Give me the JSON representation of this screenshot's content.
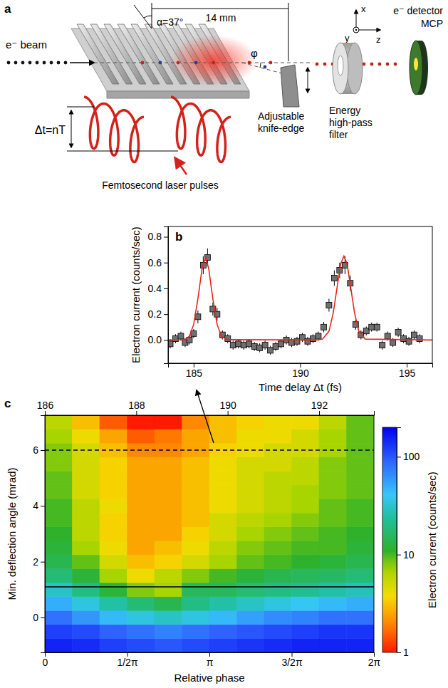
{
  "diagram": {
    "panel_label": "a",
    "distance": "14 mm",
    "angle": "α=37°",
    "beam": "e⁻ beam",
    "delay": "Δt=nT",
    "laser": "Femtosecond laser pulses",
    "deflection": "φ",
    "knife_edge": "Adjustable knife-edge",
    "axes": [
      "x",
      "y",
      "z"
    ],
    "detector": [
      "e⁻ detector",
      "MCP"
    ],
    "filter": "Energy high-pass filter"
  },
  "chart_data": [
    {
      "type": "scatter",
      "panel_label": "b",
      "x_label": "Time delay Δt (fs)",
      "y_label": "Electron current (counts/sec)",
      "xlim": [
        183.8,
        196.2
      ],
      "xticks": [
        185,
        190,
        195
      ],
      "ylim": [
        -0.18,
        0.88
      ],
      "yticks": [
        {
          "value": 0,
          "label": "0.0"
        },
        {
          "value": 0.2,
          "label": "0.2"
        },
        {
          "value": 0.4,
          "label": "0.4"
        },
        {
          "value": 0.6,
          "label": "0.6"
        },
        {
          "value": 0.8,
          "label": "0.8"
        }
      ],
      "series": [
        {
          "type": "scatter",
          "color": "#707070",
          "marker": "square",
          "x": [
            183.9,
            184.15,
            184.4,
            184.6,
            184.8,
            185.0,
            185.2,
            185.45,
            185.65,
            185.9,
            186.1,
            186.35,
            186.6,
            186.85,
            187.1,
            187.35,
            187.6,
            187.85,
            188.1,
            188.35,
            188.6,
            188.85,
            189.1,
            189.35,
            189.6,
            189.85,
            190.1,
            190.35,
            190.6,
            190.85,
            191.1,
            191.35,
            191.6,
            191.85,
            192.1,
            192.35,
            192.6,
            192.85,
            193.1,
            193.35,
            193.6,
            193.85,
            194.1,
            194.35,
            194.6,
            194.85,
            195.1,
            195.35,
            195.6
          ],
          "values": [
            -0.03,
            0.01,
            0.03,
            -0.02,
            0.0,
            0.05,
            0.18,
            0.58,
            0.64,
            0.24,
            0.2,
            0.04,
            0.01,
            -0.04,
            -0.03,
            -0.04,
            -0.03,
            -0.05,
            -0.06,
            -0.04,
            -0.08,
            -0.05,
            -0.03,
            0.0,
            -0.02,
            -0.01,
            0.02,
            -0.01,
            0.01,
            0.03,
            0.1,
            0.27,
            0.48,
            0.54,
            0.58,
            0.44,
            0.12,
            0.04,
            0.07,
            0.1,
            0.1,
            -0.04,
            0.03,
            -0.02,
            0.06,
            0.01,
            -0.01,
            0.04,
            0.01
          ],
          "errors": [
            0.035,
            0.035,
            0.035,
            0.035,
            0.035,
            0.035,
            0.05,
            0.07,
            0.07,
            0.05,
            0.05,
            0.035,
            0.035,
            0.035,
            0.035,
            0.035,
            0.035,
            0.035,
            0.035,
            0.035,
            0.035,
            0.035,
            0.035,
            0.035,
            0.035,
            0.035,
            0.035,
            0.035,
            0.035,
            0.035,
            0.04,
            0.05,
            0.06,
            0.06,
            0.07,
            0.06,
            0.04,
            0.035,
            0.035,
            0.035,
            0.035,
            0.035,
            0.035,
            0.035,
            0.035,
            0.035,
            0.035,
            0.035,
            0.035
          ]
        },
        {
          "type": "line",
          "color": "#e8261e",
          "x": [
            183.8,
            184.6,
            184.8,
            185.0,
            185.2,
            185.4,
            185.55,
            185.7,
            185.9,
            186.1,
            186.3,
            186.6,
            190.8,
            191.05,
            191.35,
            191.55,
            191.75,
            191.9,
            192.05,
            192.2,
            192.35,
            192.55,
            192.75,
            193.05,
            196.2
          ],
          "values": [
            0,
            0.003,
            0.03,
            0.12,
            0.32,
            0.56,
            0.64,
            0.56,
            0.32,
            0.12,
            0.03,
            0.003,
            0,
            0.007,
            0.068,
            0.21,
            0.43,
            0.59,
            0.65,
            0.59,
            0.43,
            0.21,
            0.068,
            0.007,
            0
          ]
        }
      ]
    },
    {
      "type": "heatmap",
      "panel_label": "c",
      "x_label": "Relative phase",
      "y_label": "Min. deflection angle (mrad)",
      "xlim": [
        0,
        6.2832
      ],
      "xticks": [
        0,
        {
          "value": 1.5708,
          "label": "1/2π"
        },
        {
          "value": 3.1416,
          "label": "π"
        },
        {
          "value": 4.7124,
          "label": "3/2π"
        },
        {
          "value": 6.2832,
          "label": "2π"
        }
      ],
      "x2lim": [
        186,
        193.2
      ],
      "x2ticks": [
        186,
        188,
        190,
        192
      ],
      "ylim": [
        -1.25,
        7.25
      ],
      "yticks": [
        0,
        2,
        4,
        6
      ],
      "x": [
        0.2618,
        0.7854,
        1.309,
        1.8326,
        2.3562,
        2.8798,
        3.4034,
        3.927,
        4.4506,
        4.9742,
        5.4978,
        6.0214
      ],
      "y": [
        -1.0,
        -0.5,
        0.0,
        0.5,
        1.0,
        1.5,
        2.0,
        2.5,
        3.0,
        3.5,
        4.0,
        4.5,
        5.0,
        5.5,
        6.0,
        6.5,
        7.0
      ],
      "z": [
        [
          150,
          140,
          120,
          110,
          100,
          110,
          120,
          130,
          140,
          150,
          150,
          150
        ],
        [
          120,
          110,
          90,
          80,
          70,
          80,
          90,
          100,
          110,
          120,
          130,
          130
        ],
        [
          80,
          60,
          45,
          35,
          30,
          35,
          45,
          55,
          65,
          70,
          80,
          80
        ],
        [
          50,
          35,
          25,
          18,
          14,
          20,
          25,
          30,
          35,
          40,
          45,
          50
        ],
        [
          30,
          20,
          12,
          8,
          7,
          15,
          15,
          18,
          20,
          22,
          25,
          28
        ],
        [
          18,
          12,
          7,
          4,
          6,
          8,
          10,
          12,
          14,
          15,
          16,
          18
        ],
        [
          14,
          9,
          5,
          3,
          3.5,
          5,
          7,
          9,
          10,
          11,
          12,
          14
        ],
        [
          12,
          7,
          4,
          2.5,
          3,
          4,
          6,
          8,
          9,
          10,
          10,
          12
        ],
        [
          11,
          6,
          3.5,
          2.5,
          2.5,
          3.5,
          5,
          7,
          8,
          9,
          10,
          11
        ],
        [
          10,
          6,
          3.5,
          2.5,
          2.5,
          3,
          5,
          6,
          7,
          8,
          9,
          10
        ],
        [
          10,
          6,
          4,
          2.5,
          2.5,
          3,
          4,
          5,
          6,
          7,
          9,
          10
        ],
        [
          9,
          5,
          3.5,
          2.5,
          2.5,
          3,
          4,
          5,
          6,
          7,
          8,
          9
        ],
        [
          9,
          5,
          3.5,
          2.5,
          2.5,
          3,
          4,
          5,
          6,
          6,
          8,
          9
        ],
        [
          8,
          5,
          3.5,
          2.5,
          2.5,
          3,
          4,
          5,
          5,
          6,
          8,
          9
        ],
        [
          8,
          5,
          3,
          2,
          2,
          2.5,
          3.5,
          4,
          5,
          5,
          7,
          9
        ],
        [
          7,
          4,
          2.5,
          1.5,
          1.8,
          2.5,
          3,
          4,
          4,
          5,
          7,
          9
        ],
        [
          6,
          3,
          1.5,
          1,
          1,
          2,
          3,
          3.5,
          4,
          4,
          6,
          9
        ]
      ],
      "colorbar": {
        "label": "Electron current (counts/sec)",
        "range": [
          1,
          200
        ],
        "ticks": [
          1,
          10,
          100
        ],
        "log": true
      },
      "reference_lines": [
        {
          "value": 6,
          "line_style": "dashed"
        },
        {
          "value": 1.1,
          "line_style": "solid"
        }
      ]
    }
  ]
}
